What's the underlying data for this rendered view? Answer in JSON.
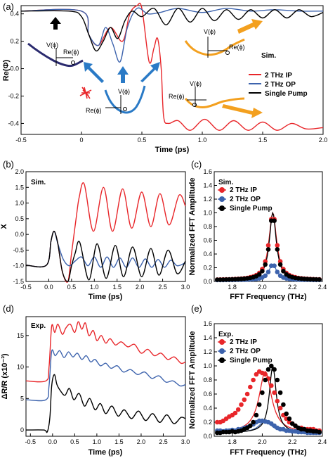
{
  "colors": {
    "ip": "#e8262a",
    "op": "#3d63ad",
    "single": "#000000",
    "orange": "#f3a01f",
    "well_a": "#2a2a6e",
    "well_c": "#2a7ac6",
    "well_o": "#f3a01f",
    "pulse": "#e8262a"
  },
  "chart_data": [
    {
      "id": "a",
      "type": "line",
      "panel_label": "(a)",
      "xlabel": "Time (ps)",
      "ylabel": "Re(Φ)",
      "xlim": [
        -0.5,
        2.0
      ],
      "ylim": [
        -0.48,
        0.46
      ],
      "xticks": [
        -0.5,
        0,
        0.5,
        1.0,
        1.5,
        2.0
      ],
      "xtick_labels": [
        "-0.5",
        "0",
        "0.5",
        "1.0",
        "1.5",
        "2.0"
      ],
      "yticks": [
        -0.4,
        -0.2,
        0.0,
        0.2,
        0.4
      ],
      "ytick_labels": [
        "-0.4",
        "-0.2",
        "0.0",
        "0.2",
        "0.4"
      ],
      "annotation": "Sim.",
      "legend": [
        "2 THz IP",
        "2 THz OP",
        "Single Pump"
      ],
      "inset_labels": {
        "v": "V(ϕ)",
        "re": "Re(ϕ)"
      },
      "series": [
        {
          "name": "2 THz IP",
          "color_key": "ip",
          "x": [
            -0.5,
            0.0,
            0.06,
            0.14,
            0.24,
            0.34,
            0.4,
            0.46,
            0.5,
            0.56,
            0.6,
            0.63,
            0.66,
            0.68,
            0.72,
            0.8,
            0.9,
            1.02,
            1.14,
            1.26,
            1.38,
            1.5,
            1.62,
            1.74,
            1.86,
            2.0
          ],
          "y": [
            0.42,
            0.42,
            0.25,
            0.17,
            0.3,
            0.2,
            0.4,
            0.46,
            0.44,
            0.05,
            0.15,
            0.22,
            0.0,
            -0.35,
            -0.4,
            -0.38,
            -0.45,
            -0.37,
            -0.45,
            -0.38,
            -0.45,
            -0.39,
            -0.45,
            -0.4,
            -0.44,
            -0.43
          ]
        },
        {
          "name": "2 THz OP",
          "color_key": "op",
          "x": [
            -0.5,
            0.0,
            0.06,
            0.14,
            0.2,
            0.26,
            0.32,
            0.38,
            0.46,
            0.55,
            0.65,
            0.8,
            1.0,
            1.2,
            1.4,
            1.6,
            1.8,
            2.0
          ],
          "y": [
            0.42,
            0.42,
            0.25,
            0.17,
            0.3,
            0.18,
            0.05,
            0.3,
            0.44,
            0.4,
            0.41,
            0.44,
            0.41,
            0.44,
            0.42,
            0.43,
            0.42,
            0.42
          ],
          "after_index_start": 3
        },
        {
          "name": "Single Pump",
          "color_key": "single",
          "x": [
            -0.5,
            -0.1,
            0.0,
            0.06,
            0.12,
            0.18,
            0.24,
            0.3,
            0.36,
            0.42,
            0.5,
            0.6,
            0.7,
            0.8,
            0.9,
            1.0,
            1.1,
            1.2,
            1.3,
            1.4,
            1.5,
            1.6,
            1.7,
            1.8,
            1.9,
            2.0
          ],
          "y": [
            0.42,
            0.42,
            0.38,
            0.25,
            0.13,
            0.2,
            0.3,
            0.22,
            0.35,
            0.42,
            0.38,
            0.44,
            0.32,
            0.44,
            0.34,
            0.44,
            0.35,
            0.43,
            0.36,
            0.43,
            0.37,
            0.43,
            0.37,
            0.43,
            0.38,
            0.41
          ]
        }
      ]
    },
    {
      "id": "b",
      "type": "line",
      "panel_label": "(b)",
      "xlabel": "Time (ps)",
      "ylabel": "X",
      "xlim": [
        -0.5,
        3.0
      ],
      "ylim": [
        -1.5,
        2.0
      ],
      "xticks": [
        -0.5,
        0.0,
        0.5,
        1.0,
        1.5,
        2.0,
        2.5,
        3.0
      ],
      "xtick_labels": [
        "-0.5",
        "0.0",
        "0.5",
        "1.0",
        "1.5",
        "2.0",
        "2.5",
        "3.0"
      ],
      "yticks": [
        -1.5,
        -1.0,
        -0.5,
        0.0,
        0.5,
        1.0,
        1.5,
        2.0
      ],
      "ytick_labels": [
        "-1.5",
        "-1.0",
        "-0.5",
        "0.0",
        "0.5",
        "1.0",
        "1.5",
        "2.0"
      ],
      "annotation": "Sim.",
      "series": [
        {
          "name": "2 THz IP",
          "color_key": "ip",
          "x": [
            -0.5,
            -0.05,
            0.05,
            0.12,
            0.2,
            0.3,
            0.42,
            0.5,
            0.6,
            0.67,
            0.78,
            0.98,
            1.2,
            1.4,
            1.62,
            1.82,
            2.04,
            2.24,
            2.44,
            2.64,
            2.86,
            3.0
          ],
          "y": [
            -0.98,
            -0.98,
            -0.2,
            0.1,
            -0.3,
            -1.2,
            -1.5,
            -0.6,
            0.5,
            1.2,
            1.6,
            0.1,
            1.5,
            0.1,
            1.45,
            0.2,
            1.35,
            0.25,
            1.3,
            0.3,
            1.25,
            0.9
          ]
        },
        {
          "name": "2 THz OP",
          "color_key": "op",
          "x": [
            -0.5,
            -0.05,
            0.05,
            0.12,
            0.2,
            0.32,
            0.45,
            0.58,
            0.72,
            0.86,
            1.0,
            1.14,
            1.28,
            1.42,
            1.56,
            1.7,
            1.84,
            1.98,
            2.12,
            2.26,
            2.4,
            2.54,
            2.68,
            2.82,
            3.0
          ],
          "y": [
            -0.98,
            -0.98,
            -0.2,
            0.1,
            -0.3,
            -0.8,
            -1.0,
            -0.85,
            -0.72,
            -1.0,
            -0.72,
            -1.05,
            -0.72,
            -1.05,
            -0.75,
            -1.05,
            -0.75,
            -1.05,
            -0.78,
            -1.05,
            -0.8,
            -1.05,
            -0.82,
            -1.0,
            -0.9
          ]
        },
        {
          "name": "Single Pump",
          "color_key": "single",
          "x": [
            -0.5,
            -0.05,
            0.05,
            0.12,
            0.2,
            0.3,
            0.42,
            0.5,
            0.58,
            0.68,
            0.88,
            1.06,
            1.26,
            1.46,
            1.64,
            1.84,
            2.04,
            2.24,
            2.42,
            2.62,
            2.82,
            3.0
          ],
          "y": [
            -0.98,
            -0.98,
            -0.2,
            0.1,
            -0.3,
            -1.2,
            -1.5,
            -1.0,
            -0.6,
            -0.25,
            -1.45,
            -0.3,
            -1.4,
            -0.35,
            -1.35,
            -0.4,
            -1.35,
            -0.45,
            -1.3,
            -0.5,
            -1.25,
            -0.85
          ]
        }
      ]
    },
    {
      "id": "c",
      "type": "scatter+line",
      "panel_label": "(c)",
      "xlabel": "FFT Frequency (THz)",
      "ylabel": "Normalized FFT Amplitude",
      "xlim": [
        1.68,
        2.4
      ],
      "ylim": [
        0.0,
        1.6
      ],
      "xticks": [
        1.8,
        2.0,
        2.2,
        2.4
      ],
      "xtick_labels": [
        "1.8",
        "2.0",
        "2.2",
        "2.4"
      ],
      "yticks": [
        0.0,
        0.2,
        0.4,
        0.6,
        0.8,
        1.0,
        1.2,
        1.4,
        1.6
      ],
      "ytick_labels": [
        "0.0",
        "0.2",
        "0.4",
        "0.6",
        "0.8",
        "1.0",
        "1.2",
        "1.4",
        "1.6"
      ],
      "annotation": "Sim.",
      "legend": [
        "2 THz IP",
        "2 THz OP",
        "Single Pump"
      ],
      "series": [
        {
          "name": "2 THz IP",
          "color_key": "ip",
          "peak": 1.0,
          "center": 2.07,
          "width": 0.062,
          "base": 0.02
        },
        {
          "name": "2 THz OP",
          "color_key": "op",
          "peak": 0.25,
          "center": 2.07,
          "width": 0.062,
          "base": 0.02
        },
        {
          "name": "Single Pump",
          "color_key": "single",
          "peak": 1.0,
          "center": 2.07,
          "width": 0.055,
          "base": 0.02
        }
      ],
      "x": [
        1.7,
        1.72,
        1.74,
        1.76,
        1.78,
        1.8,
        1.82,
        1.84,
        1.86,
        1.88,
        1.9,
        1.92,
        1.94,
        1.96,
        1.98,
        2.0,
        2.02,
        2.04,
        2.06,
        2.08,
        2.1,
        2.12,
        2.14,
        2.16,
        2.18,
        2.2,
        2.22,
        2.24,
        2.26,
        2.28,
        2.3,
        2.32,
        2.34,
        2.36,
        2.38
      ]
    },
    {
      "id": "d",
      "type": "line",
      "panel_label": "(d)",
      "xlabel": "Time (ps)",
      "ylabel": "ΔR/R (x10⁻³)",
      "xlim": [
        -0.6,
        3.0
      ],
      "ylim": [
        -1,
        18
      ],
      "xticks": [
        -0.5,
        0.0,
        0.5,
        1.0,
        1.5,
        2.0,
        2.5,
        3.0
      ],
      "xtick_labels": [
        "-0.5",
        "0.0",
        "0.5",
        "1.0",
        "1.5",
        "2.0",
        "2.5",
        "3.0"
      ],
      "yticks": [
        0,
        5,
        10,
        15
      ],
      "ytick_labels": [
        "0",
        "5",
        "10",
        "15"
      ],
      "annotation": "Exp.",
      "series": [
        {
          "name": "2 THz IP",
          "color_key": "ip",
          "x": [
            -0.6,
            -0.15,
            -0.08,
            -0.02,
            0.05,
            0.12,
            0.22,
            0.3,
            0.4,
            0.5,
            0.58,
            0.66,
            0.74,
            0.82,
            0.92,
            1.0,
            1.1,
            1.2,
            1.3,
            1.42,
            1.55,
            1.7,
            1.85,
            2.0,
            2.15,
            2.3,
            2.45,
            2.6,
            2.75,
            2.9,
            3.0
          ],
          "y": [
            7.8,
            7.8,
            10,
            16.5,
            15.5,
            16.8,
            15.2,
            16.2,
            16.8,
            15.5,
            17.2,
            16.0,
            17.0,
            15.0,
            15.8,
            14.2,
            15.0,
            13.8,
            14.5,
            13.5,
            14.0,
            13.2,
            13.6,
            12.2,
            12.8,
            11.8,
            12.2,
            11.2,
            11.6,
            10.6,
            10.8
          ]
        },
        {
          "name": "2 THz OP",
          "color_key": "op",
          "x": [
            -0.6,
            -0.15,
            -0.08,
            -0.02,
            0.06,
            0.16,
            0.26,
            0.36,
            0.46,
            0.56,
            0.66,
            0.76,
            0.86,
            0.96,
            1.08,
            1.2,
            1.32,
            1.46,
            1.6,
            1.76,
            1.92,
            2.08,
            2.24,
            2.4,
            2.56,
            2.72,
            2.88,
            3.0
          ],
          "y": [
            4.8,
            4.8,
            7,
            12.5,
            11.8,
            12.6,
            11.5,
            12.4,
            11.6,
            12.2,
            11.2,
            11.8,
            10.8,
            11.2,
            10.2,
            10.6,
            9.8,
            10.2,
            9.2,
            9.6,
            8.8,
            9.2,
            8.2,
            8.6,
            7.6,
            7.8,
            7.0,
            7.2
          ]
        },
        {
          "name": "Single Pump",
          "color_key": "single",
          "x": [
            -0.6,
            -0.2,
            -0.12,
            -0.06,
            -0.02,
            0.04,
            0.1,
            0.18,
            0.28,
            0.38,
            0.48,
            0.6,
            0.72,
            0.84,
            0.96,
            1.08,
            1.2,
            1.34,
            1.48,
            1.62,
            1.78,
            1.94,
            2.1,
            2.26,
            2.42,
            2.58,
            2.74,
            2.9,
            3.0
          ],
          "y": [
            0.0,
            0.0,
            -0.3,
            2,
            7,
            8.8,
            7.2,
            6.2,
            5.5,
            6.6,
            4.8,
            5.8,
            3.8,
            5.0,
            3.2,
            4.2,
            2.6,
            3.8,
            2.2,
            3.2,
            1.8,
            3.0,
            1.5,
            2.6,
            1.2,
            2.4,
            1.0,
            2.0,
            1.8
          ]
        }
      ]
    },
    {
      "id": "e",
      "type": "scatter+line",
      "panel_label": "(e)",
      "xlabel": "FFT Frequency (THz)",
      "ylabel": "Normalized FFT Amplitude",
      "xlim": [
        1.68,
        2.4
      ],
      "ylim": [
        0.0,
        1.6
      ],
      "xticks": [
        1.8,
        2.0,
        2.2,
        2.4
      ],
      "xtick_labels": [
        "1.8",
        "2.0",
        "2.2",
        "2.4"
      ],
      "yticks": [
        0.0,
        0.2,
        0.4,
        0.6,
        0.8,
        1.0,
        1.2,
        1.4,
        1.6
      ],
      "ytick_labels": [
        "0.0",
        "0.2",
        "0.4",
        "0.6",
        "0.8",
        "1.0",
        "1.2",
        "1.4",
        "1.6"
      ],
      "annotation": "Exp.",
      "legend": [
        "2 THz IP",
        "2 THz OP",
        "Single Pump"
      ],
      "series": [
        {
          "name": "2 THz IP",
          "color_key": "ip",
          "peak": 0.92,
          "center": 2.02,
          "width": 0.1,
          "base": 0.05,
          "y": [
            0.2,
            0.2,
            0.22,
            0.25,
            0.28,
            0.3,
            0.33,
            0.38,
            0.45,
            0.52,
            0.6,
            0.7,
            0.8,
            0.88,
            0.92,
            0.9,
            0.88,
            0.82,
            0.72,
            0.62,
            0.5,
            0.4,
            0.3,
            0.25,
            0.2,
            0.18,
            0.15,
            0.12,
            0.12,
            0.1,
            0.1,
            0.1,
            0.1,
            0.08,
            0.08
          ]
        },
        {
          "name": "2 THz OP",
          "color_key": "op",
          "peak": 0.22,
          "center": 2.02,
          "width": 0.1,
          "base": 0.05,
          "y": [
            0.08,
            0.08,
            0.07,
            0.08,
            0.08,
            0.09,
            0.08,
            0.1,
            0.1,
            0.12,
            0.13,
            0.15,
            0.17,
            0.2,
            0.22,
            0.22,
            0.21,
            0.2,
            0.18,
            0.15,
            0.12,
            0.1,
            0.1,
            0.08,
            0.08,
            0.07,
            0.07,
            0.06,
            0.06,
            0.06,
            0.05,
            0.05,
            0.05,
            0.05,
            0.05
          ]
        },
        {
          "name": "Single Pump",
          "color_key": "single",
          "peak": 1.0,
          "center": 2.07,
          "width": 0.055,
          "base": 0.05,
          "y": [
            0.05,
            0.05,
            0.06,
            0.06,
            0.06,
            0.07,
            0.06,
            0.07,
            0.08,
            0.1,
            0.12,
            0.15,
            0.2,
            0.3,
            0.45,
            0.62,
            0.8,
            0.95,
            1.0,
            0.95,
            0.8,
            0.62,
            0.45,
            0.32,
            0.25,
            0.18,
            0.15,
            0.12,
            0.1,
            0.1,
            0.08,
            0.08,
            0.07,
            0.07,
            0.06
          ]
        }
      ],
      "x": [
        1.7,
        1.72,
        1.74,
        1.76,
        1.78,
        1.8,
        1.82,
        1.84,
        1.86,
        1.88,
        1.9,
        1.92,
        1.94,
        1.96,
        1.98,
        2.0,
        2.02,
        2.04,
        2.06,
        2.08,
        2.1,
        2.12,
        2.14,
        2.16,
        2.18,
        2.2,
        2.22,
        2.24,
        2.26,
        2.28,
        2.3,
        2.32,
        2.34,
        2.36,
        2.38
      ]
    }
  ]
}
